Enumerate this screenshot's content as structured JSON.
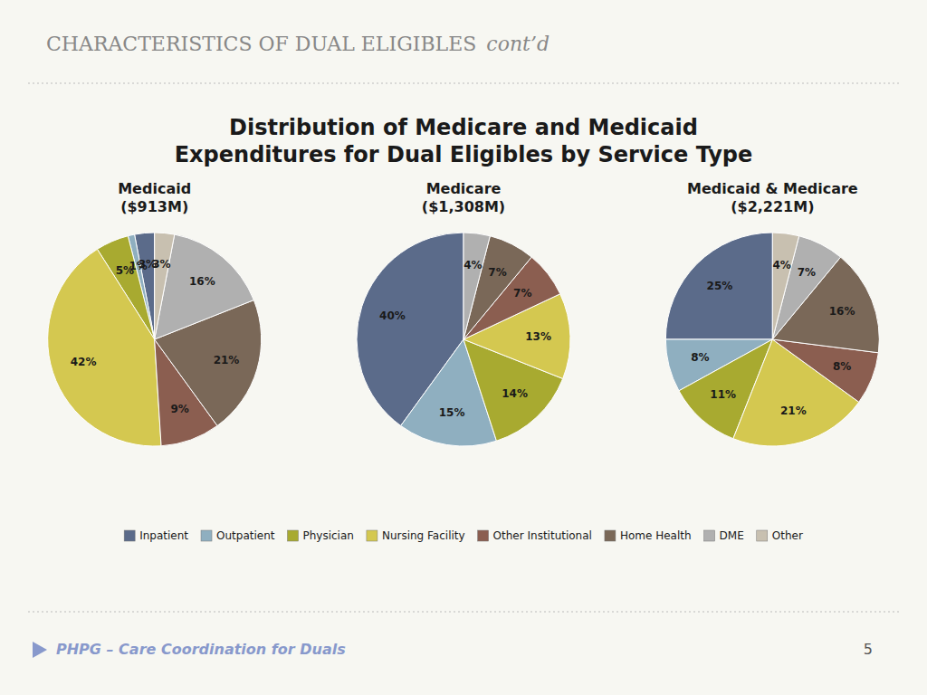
{
  "chart_data": {
    "type": "pie",
    "title": "Distribution of Medicare and Medicaid\nExpenditures for Dual Eligibles by Service Type",
    "annotations": [
      "CHARACTERISTICS OF DUAL ELIGIBLES ",
      "cont’d",
      "PHPG – Care Coordination for Duals",
      "5"
    ],
    "categories": [
      "Inpatient",
      "Outpatient",
      "Physician",
      "Nursing Facility",
      "Other Institutional",
      "Home Health",
      "DME",
      "Other"
    ],
    "colors": [
      "#5b6b8a",
      "#8fafc0",
      "#a8aa30",
      "#d4c850",
      "#8b5e50",
      "#7a6858",
      "#b0b0b0",
      "#c8c0b0"
    ],
    "legend": "bottom",
    "data_labels": true,
    "series": [
      {
        "name": "Medicaid\n($913M)",
        "values": [
          3,
          1,
          5,
          42,
          9,
          21,
          16,
          3
        ],
        "value_labels": [
          "3%",
          "1%",
          "5%",
          "42%",
          "9%",
          "21%",
          "16%",
          "3%"
        ]
      },
      {
        "name": "Medicare\n($1,308M)",
        "values": [
          40,
          15,
          14,
          13,
          7,
          7,
          4,
          0
        ],
        "value_labels": [
          "40%",
          "15%",
          "14%",
          "13%",
          "7%",
          "7%",
          "4%",
          null
        ]
      },
      {
        "name": "Medicaid & Medicare\n($2,221M)",
        "values": [
          25,
          8,
          11,
          21,
          8,
          16,
          7,
          4
        ],
        "value_labels": [
          "25%",
          "8%",
          "11%",
          "21%",
          "8%",
          "16%",
          "7%",
          "4%"
        ]
      }
    ]
  }
}
